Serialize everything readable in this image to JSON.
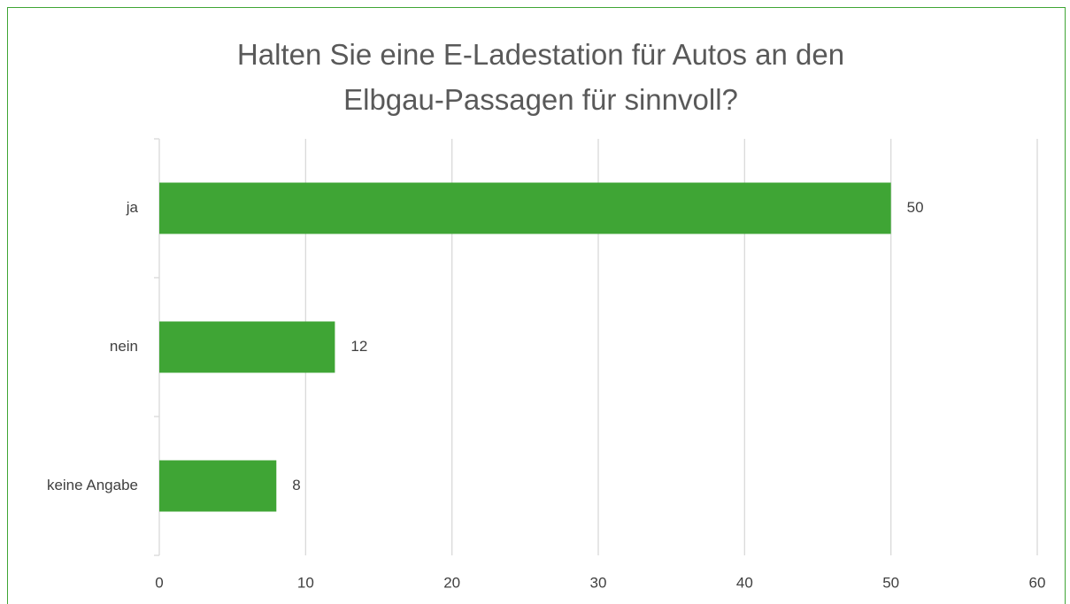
{
  "chart_data": {
    "type": "bar",
    "orientation": "horizontal",
    "title": "Halten Sie eine E-Ladestation für Autos an den Elbgau-Passagen für sinnvoll?",
    "categories": [
      "ja",
      "nein",
      "keine Angabe"
    ],
    "values": [
      50,
      12,
      8
    ],
    "color": "#3fa535",
    "xlim": [
      0,
      60
    ],
    "xticks": [
      0,
      10,
      20,
      30,
      40,
      50,
      60
    ],
    "grid": true
  }
}
